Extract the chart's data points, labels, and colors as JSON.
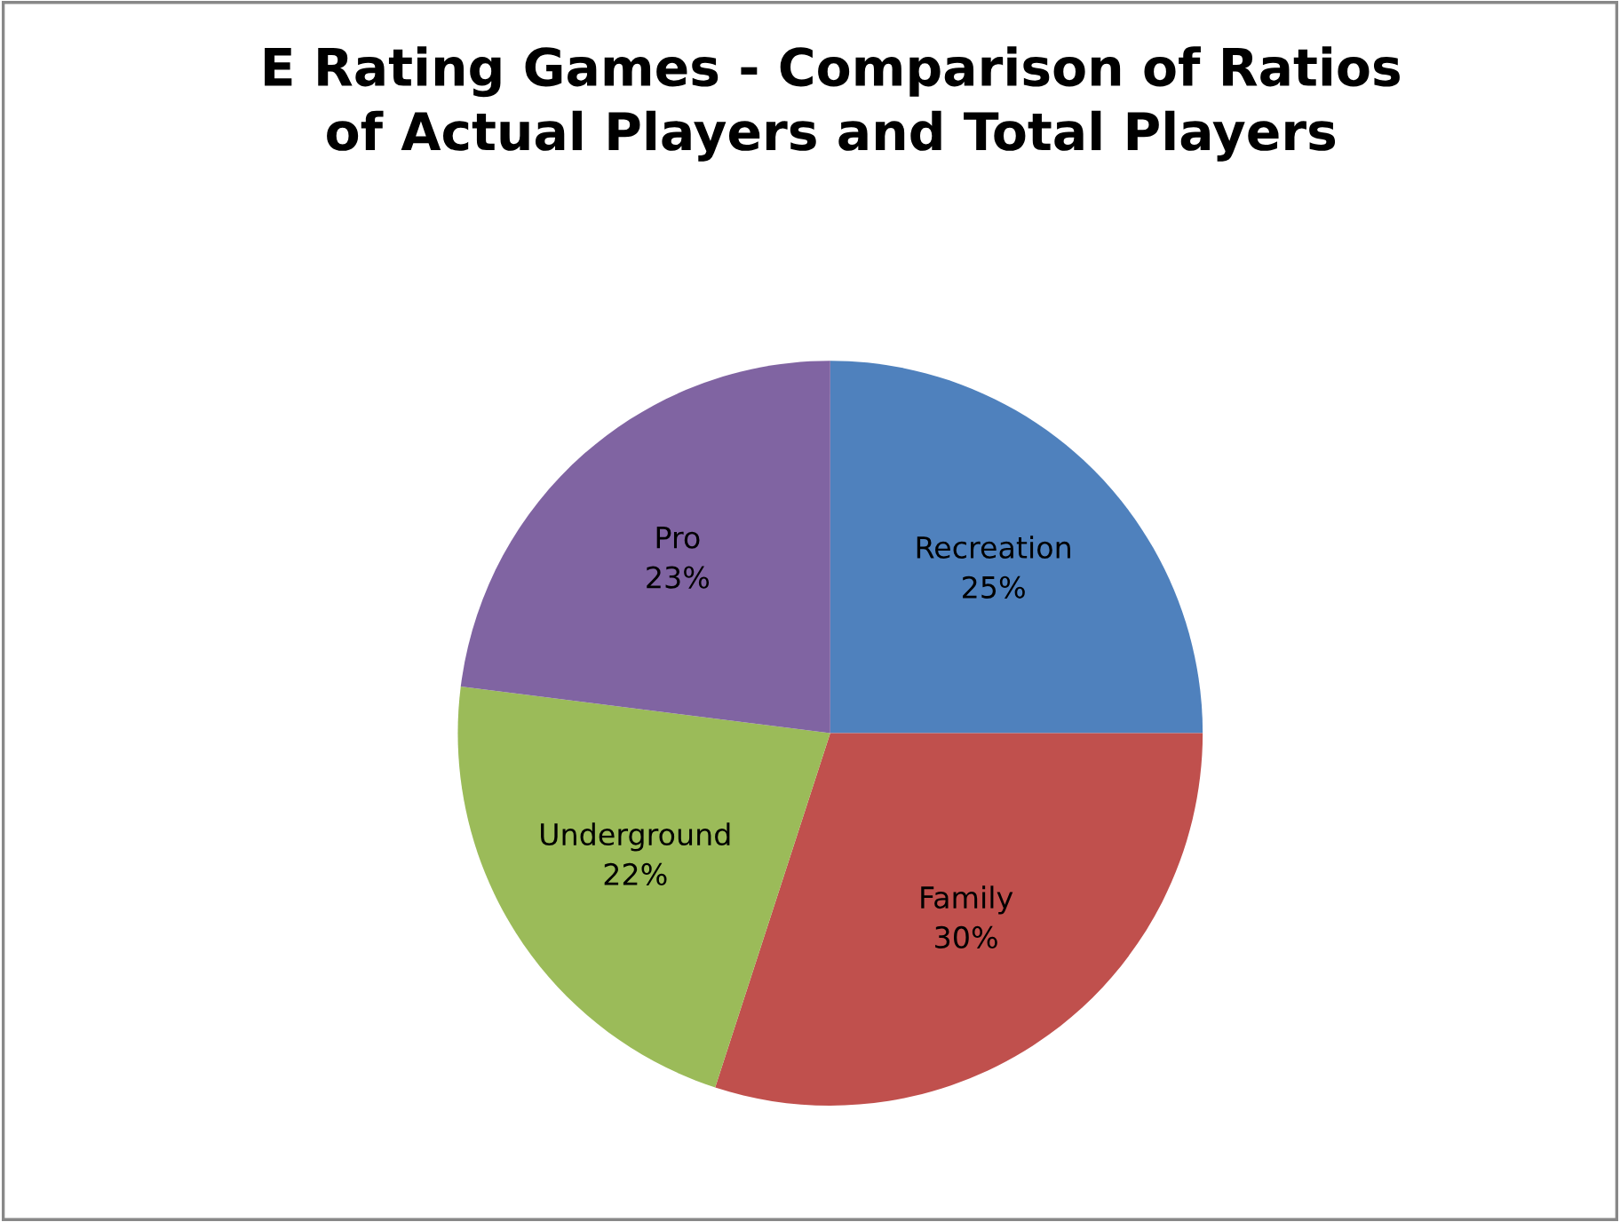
{
  "chart_data": {
    "type": "pie",
    "title": "E Rating Games - Comparison of Ratios\nof Actual Players and Total Players",
    "categories": [
      "Recreation",
      "Family",
      "Underground",
      "Pro"
    ],
    "values": [
      25,
      30,
      22,
      23
    ],
    "colors": [
      "#4f81bd",
      "#c0504d",
      "#9bbb59",
      "#8064a2"
    ],
    "value_labels": [
      "25%",
      "30%",
      "22%",
      "23%"
    ],
    "legend": false
  }
}
